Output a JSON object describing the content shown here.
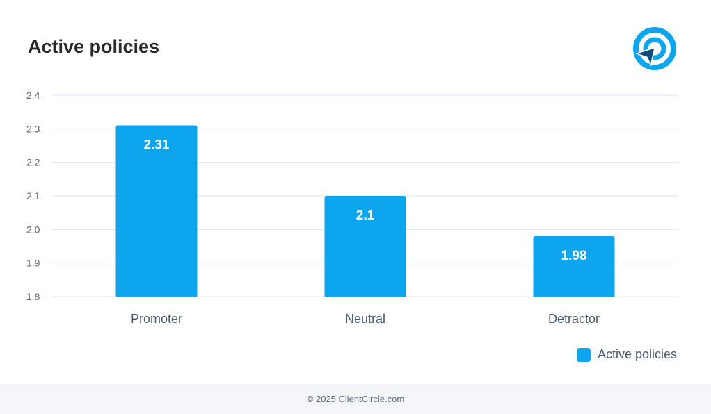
{
  "header": {
    "title": "Active policies",
    "logo_icon": "target-arrow-icon"
  },
  "chart_data": {
    "type": "bar",
    "title": "Active policies",
    "categories": [
      "Promoter",
      "Neutral",
      "Detractor"
    ],
    "series": [
      {
        "name": "Active policies",
        "values": [
          2.31,
          2.1,
          1.98
        ],
        "labels": [
          "2.31",
          "2.1",
          "1.98"
        ]
      }
    ],
    "ylim": [
      1.8,
      2.4
    ],
    "yticks": [
      "1.8",
      "1.9",
      "2.0",
      "2.1",
      "2.2",
      "2.3",
      "2.4"
    ],
    "grid": true,
    "legend_position": "bottom-right",
    "bar_color": "#0ea5ef",
    "grid_color": "#d7e6f2"
  },
  "legend": {
    "label": "Active policies"
  },
  "footer": {
    "text": "© 2025 ClientCircle.com"
  }
}
